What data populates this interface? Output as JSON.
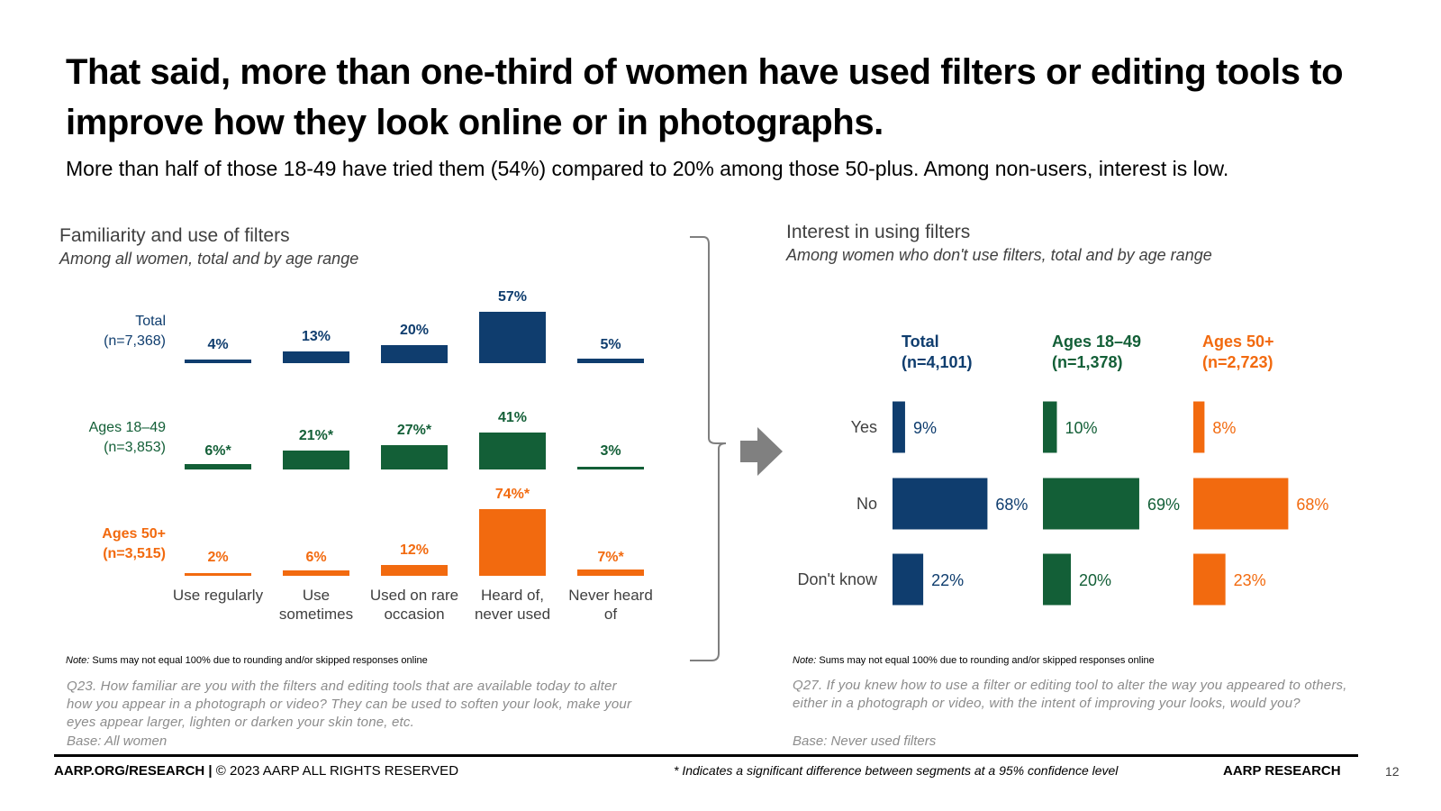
{
  "slide": {
    "headline": "That said, more than one-third of women have used filters or editing tools to improve how they look online or in photographs.",
    "subline": "More than half of those 18-49 have tried them (54%) compared to 20% among those 50-plus. Among non-users, interest is low.",
    "page_number": "12"
  },
  "colors": {
    "navy": "#0f3d6e",
    "green": "#135f37",
    "orange": "#f26a0f",
    "gray_text": "#404040"
  },
  "left_panel": {
    "title": "Familiarity and use of filters",
    "subtitle": "Among all women, total and by age range",
    "note_label": "Note:",
    "note_text": " Sums may not equal 100% due to rounding and/or skipped responses online",
    "question": "Q23. How familiar are you with the filters and editing tools that are available today to alter how you appear in a photograph or video? They can be used to soften your look, make your eyes appear larger, lighten or darken your skin tone, etc.",
    "base": "Base: All women"
  },
  "right_panel": {
    "title": "Interest in using filters",
    "subtitle": "Among women who don't use filters, total and by age range",
    "note_label": "Note:",
    "note_text": " Sums may not equal 100% due to rounding and/or skipped responses online",
    "question": "Q27. If you knew how to use a filter or editing tool to alter the way you appeared to others, either in a photograph or video, with the intent of improving your looks, would you?",
    "base": "Base: Never used filters"
  },
  "footer": {
    "site": "AARP.ORG/RESEARCH |",
    "copyright": " © 2023 AARP ALL RIGHTS RESERVED",
    "significance": "* Indicates a significant difference between segments at a 95% confidence level",
    "brand": "AARP RESEARCH"
  },
  "chart_data": [
    {
      "type": "bar",
      "title": "Familiarity and use of filters",
      "categories": [
        [
          "Use regularly"
        ],
        [
          "Use",
          "sometimes"
        ],
        [
          "Used on rare",
          "occasion"
        ],
        [
          "Heard of,",
          "never used"
        ],
        [
          "Never heard",
          "of"
        ]
      ],
      "unit": "%",
      "ylim": [
        0,
        80
      ],
      "series": [
        {
          "name": "Total",
          "n": "(n=7,368)",
          "color": "#0f3d6e",
          "values": [
            4,
            13,
            20,
            57,
            5
          ],
          "labels": [
            "4%",
            "13%",
            "20%",
            "57%",
            "5%"
          ]
        },
        {
          "name": "Ages 18–49",
          "n": "(n=3,853)",
          "color": "#135f37",
          "values": [
            6,
            21,
            27,
            41,
            3
          ],
          "labels": [
            "6%*",
            "21%*",
            "27%*",
            "41%",
            "3%"
          ]
        },
        {
          "name": "Ages 50+",
          "n": "(n=3,515)",
          "color": "#f26a0f",
          "values": [
            2,
            6,
            12,
            74,
            7
          ],
          "labels": [
            "2%",
            "6%",
            "12%",
            "74%*",
            "7%*"
          ]
        }
      ]
    },
    {
      "type": "bar",
      "orientation": "horizontal",
      "title": "Interest in using filters",
      "categories": [
        "Yes",
        "No",
        "Don't know"
      ],
      "unit": "%",
      "xlim": [
        0,
        100
      ],
      "series": [
        {
          "name": "Total",
          "n": "(n=4,101)",
          "color": "#0f3d6e",
          "values": [
            9,
            68,
            22
          ],
          "labels": [
            "9%",
            "68%",
            "22%"
          ]
        },
        {
          "name": "Ages 18–49",
          "n": "(n=1,378)",
          "color": "#135f37",
          "values": [
            10,
            69,
            20
          ],
          "labels": [
            "10%",
            "69%",
            "20%"
          ]
        },
        {
          "name": "Ages 50+",
          "n": "(n=2,723)",
          "color": "#f26a0f",
          "values": [
            8,
            68,
            23
          ],
          "labels": [
            "8%",
            "68%",
            "23%"
          ]
        }
      ]
    }
  ]
}
